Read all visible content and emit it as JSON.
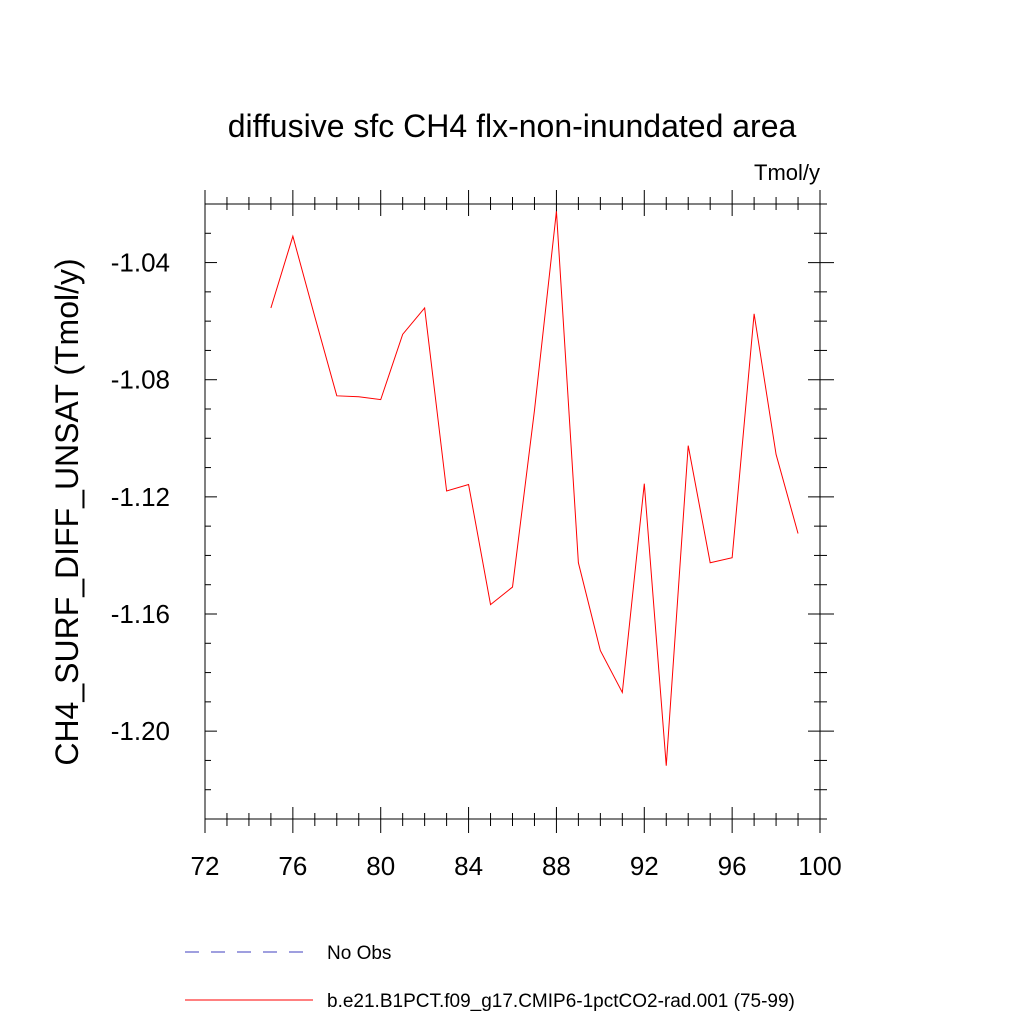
{
  "chart_data": {
    "type": "line",
    "title": "diffusive sfc CH4 flx-non-inundated area",
    "units_label": "Tmol/y",
    "ylabel": "CH4_SURF_DIFF_UNSAT  (Tmol/y)",
    "xlabel": "",
    "xlim": [
      72,
      100
    ],
    "ylim": [
      -1.23,
      -1.02
    ],
    "xticks": [
      72,
      76,
      80,
      84,
      88,
      92,
      96,
      100
    ],
    "xtick_labels": [
      "72",
      "76",
      "80",
      "84",
      "88",
      "92",
      "96",
      "100"
    ],
    "yticks": [
      -1.04,
      -1.08,
      -1.12,
      -1.16,
      -1.2
    ],
    "ytick_labels": [
      "-1.04",
      "-1.08",
      "-1.12",
      "-1.16",
      "-1.20"
    ],
    "x_minor_step": 1,
    "y_minor_step": 0.01,
    "grid": false,
    "legend_position": "bottom",
    "series": [
      {
        "name": "b.e21.B1PCT.f09_g17.CMIP6-1pctCO2-rad.001 (75-99)",
        "color": "#ff0000",
        "style": "solid",
        "x": [
          75,
          76,
          77,
          78,
          79,
          80,
          81,
          82,
          83,
          84,
          85,
          86,
          87,
          88,
          89,
          90,
          91,
          92,
          93,
          94,
          95,
          96,
          97,
          98,
          99
        ],
        "values": [
          -1.0555,
          -1.031,
          -1.0585,
          -1.0855,
          -1.0858,
          -1.0868,
          -1.0645,
          -1.0555,
          -1.118,
          -1.1158,
          -1.1568,
          -1.1508,
          -1.0905,
          -1.0225,
          -1.1425,
          -1.1725,
          -1.1868,
          -1.1155,
          -1.2118,
          -1.1025,
          -1.1425,
          -1.1408,
          -1.0575,
          -1.1055,
          -1.1325
        ]
      }
    ],
    "legend": [
      {
        "label": "No Obs",
        "color": "#3f3fbf",
        "style": "dashed"
      },
      {
        "label": "b.e21.B1PCT.f09_g17.CMIP6-1pctCO2-rad.001 (75-99)",
        "color": "#ff0000",
        "style": "solid"
      }
    ]
  }
}
